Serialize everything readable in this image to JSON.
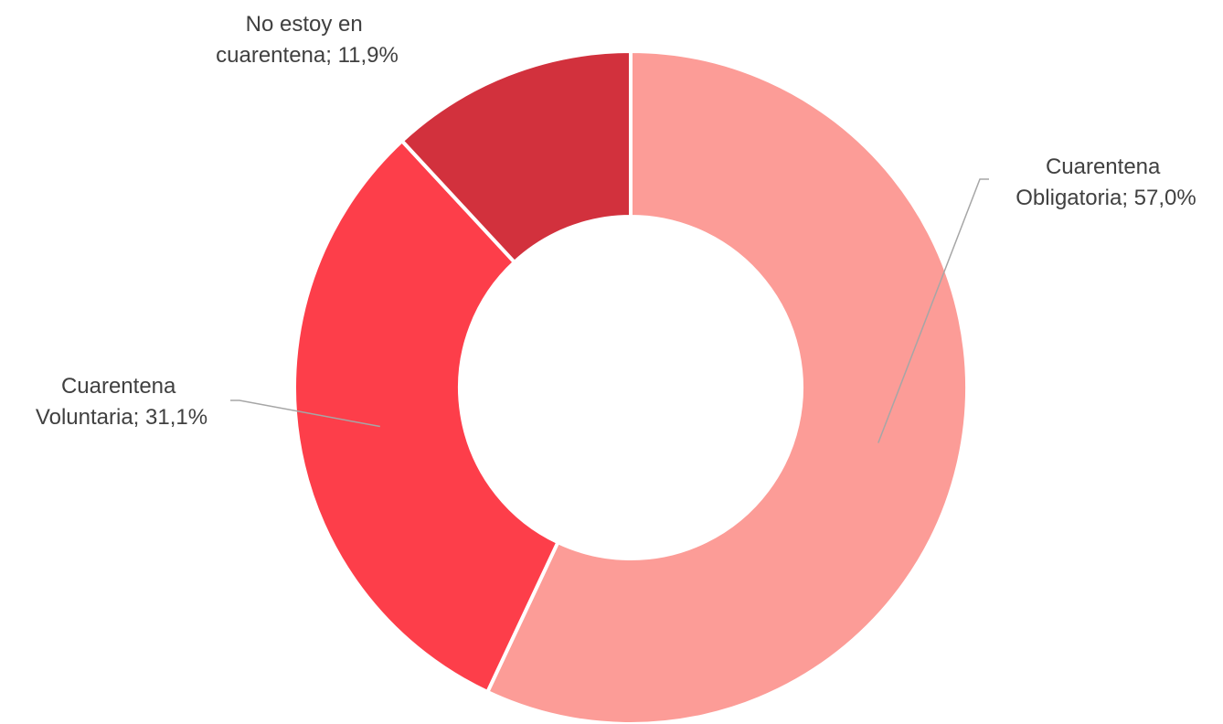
{
  "chart_data": {
    "type": "pie",
    "variant": "donut",
    "unit": "%",
    "decimal_separator": ",",
    "slices": [
      {
        "label_lines": [
          "Cuarentena",
          "Obligatoria; 57,0%"
        ],
        "category": "Cuarentena Obligatoria",
        "value": 57.0,
        "color": "#fc9c97"
      },
      {
        "label_lines": [
          "Cuarentena",
          "Voluntaria; 31,1%"
        ],
        "category": "Cuarentena Voluntaria",
        "value": 31.1,
        "color": "#fd3e4a"
      },
      {
        "label_lines": [
          "No estoy en",
          "cuarentena; 11,9%"
        ],
        "category": "No estoy en cuarentena",
        "value": 11.9,
        "color": "#d2313d"
      }
    ],
    "legend": "none",
    "data_labels": "category and value, with leader lines"
  }
}
